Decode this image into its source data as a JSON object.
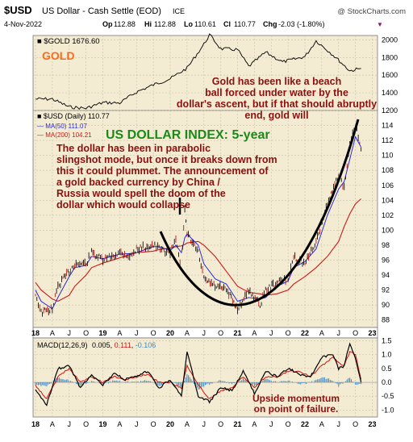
{
  "header": {
    "symbol": "$USD",
    "name": "US Dollar - Cash Settle (EOD)",
    "exchange": "ICE",
    "source": "@ StockCharts.com",
    "date": "4-Nov-2022",
    "op_label": "Op",
    "op_value": "112.88",
    "hi_label": "Hi",
    "hi_value": "112.88",
    "lo_label": "Lo",
    "lo_value": "110.61",
    "cl_label": "Cl",
    "cl_value": "110.77",
    "chg_label": "Chg",
    "chg_value": "-2.03 (-1.80%)",
    "chg_arrow": "▼"
  },
  "colors": {
    "panel_bg": "#f4ecd2",
    "gold_title": "#ff6a1a",
    "dollar_title": "#1b8a1b",
    "annotation": "#8b1010",
    "ma50": "#2b2bd6",
    "ma200": "#cc1a1a",
    "price": "#111111",
    "macd_signal": "#d01010",
    "macd_hist": "#3a86c9"
  },
  "x_axis": {
    "labels_top": [
      "18",
      "A",
      "J",
      "O",
      "19",
      "A",
      "J",
      "O",
      "20",
      "A",
      "J",
      "O",
      "21",
      "A",
      "J",
      "O",
      "22",
      "A",
      "J",
      "O",
      "23"
    ],
    "labels_bottom": [
      "18",
      "A",
      "J",
      "O",
      "19",
      "A",
      "J",
      "O",
      "20",
      "A",
      "J",
      "O",
      "21",
      "A",
      "J",
      "O",
      "22",
      "A",
      "J",
      "O",
      "23"
    ]
  },
  "chart_data": [
    {
      "type": "line",
      "panel": "gold",
      "title": "GOLD",
      "legend": "■ $GOLD 1676.60",
      "ylim": [
        1200,
        2050
      ],
      "yticks": [
        "2000",
        "1800",
        "1600",
        "1400",
        "1200"
      ],
      "x": [
        "2018-01",
        "2018-04",
        "2018-07",
        "2018-10",
        "2019-01",
        "2019-04",
        "2019-07",
        "2019-10",
        "2020-01",
        "2020-04",
        "2020-07",
        "2020-08",
        "2020-10",
        "2021-01",
        "2021-03",
        "2021-06",
        "2021-09",
        "2022-01",
        "2022-03",
        "2022-06",
        "2022-09",
        "2022-11"
      ],
      "series": [
        {
          "values": [
            1330,
            1330,
            1240,
            1225,
            1290,
            1285,
            1410,
            1490,
            1560,
            1680,
            1950,
            2060,
            1900,
            1890,
            1700,
            1860,
            1750,
            1810,
            1990,
            1830,
            1650,
            1676
          ]
        }
      ],
      "annotation": "Gold has been like a beach ball forced under water by the dollar's ascent, but if that should abruptly end, gold will soar."
    },
    {
      "type": "line",
      "panel": "dollar",
      "title": "US DOLLAR INDEX: 5-year",
      "legend": [
        "■ $USD (Daily) 110.77",
        "— MA(50) 111.07",
        "— MA(200) 104.21"
      ],
      "ylim": [
        87,
        116
      ],
      "yticks": [
        "114",
        "112",
        "110",
        "108",
        "106",
        "104",
        "102",
        "100",
        "98",
        "96",
        "94",
        "92",
        "90",
        "88"
      ],
      "x": [
        "2018-01",
        "2018-02",
        "2018-04",
        "2018-05",
        "2018-07",
        "2018-08",
        "2018-10",
        "2018-11",
        "2019-01",
        "2019-04",
        "2019-06",
        "2019-07",
        "2019-10",
        "2019-11",
        "2020-01",
        "2020-02",
        "2020-03",
        "2020-03b",
        "2020-04",
        "2020-06",
        "2020-07",
        "2020-09",
        "2020-11",
        "2021-01",
        "2021-03",
        "2021-05",
        "2021-06",
        "2021-08",
        "2021-10",
        "2021-11",
        "2022-01",
        "2022-03",
        "2022-05",
        "2022-07",
        "2022-08",
        "2022-09",
        "2022-10",
        "2022-11"
      ],
      "series": [
        {
          "name": "$USD",
          "values": [
            91.5,
            89.0,
            89.5,
            92.5,
            94.5,
            95.5,
            95.5,
            97.0,
            96.0,
            97.0,
            96.5,
            97.5,
            98.0,
            97.5,
            97.0,
            99.0,
            95.0,
            102.5,
            99.5,
            97.0,
            93.5,
            92.5,
            92.0,
            89.5,
            92.0,
            90.0,
            92.0,
            93.0,
            93.5,
            96.5,
            95.5,
            98.5,
            103.5,
            107.5,
            105.5,
            111.5,
            114.0,
            110.8
          ]
        },
        {
          "name": "MA(50)",
          "values": [
            92.0,
            90.5,
            89.5,
            91.0,
            93.8,
            95.0,
            95.3,
            96.5,
            96.2,
            96.8,
            96.9,
            97.0,
            97.8,
            97.8,
            97.3,
            98.0,
            97.0,
            99.0,
            99.5,
            98.0,
            95.5,
            93.5,
            92.8,
            90.5,
            91.0,
            90.8,
            91.0,
            92.5,
            93.2,
            95.0,
            95.8,
            97.5,
            102.0,
            105.5,
            106.5,
            109.5,
            112.5,
            111.1
          ]
        },
        {
          "name": "MA(200)",
          "values": [
            93.0,
            92.0,
            90.8,
            90.5,
            91.3,
            92.5,
            94.0,
            95.0,
            95.6,
            96.3,
            96.8,
            97.0,
            97.2,
            97.4,
            97.6,
            97.8,
            97.9,
            98.1,
            98.3,
            98.5,
            98.0,
            96.5,
            94.5,
            92.5,
            91.7,
            91.5,
            91.3,
            91.5,
            92.0,
            92.8,
            93.8,
            95.0,
            96.5,
            98.5,
            100.5,
            102.2,
            103.5,
            104.2
          ]
        }
      ],
      "annotation": "The dollar has been in parabolic slingshot mode, but once it breaks down from this it could plummet. The announcement of a gold backed currency by China / Russia would spell the doom of the dollar which would collapse with breathtaking speed."
    },
    {
      "type": "line",
      "panel": "macd",
      "legend_prefix": "MACD(12,26,9)",
      "macd_value": "0.005",
      "signal_value": "0.111",
      "hist_value": "-0.106",
      "ylim": [
        -1.25,
        1.6
      ],
      "yticks": [
        "1.5",
        "1.0",
        "0.5",
        "0.0",
        "-0.5",
        "-1.0"
      ],
      "x": [
        "2018-01",
        "2018-03",
        "2018-05",
        "2018-07",
        "2018-09",
        "2018-11",
        "2019-01",
        "2019-03",
        "2019-05",
        "2019-07",
        "2019-09",
        "2019-11",
        "2020-01",
        "2020-03",
        "2020-04",
        "2020-06",
        "2020-08",
        "2020-10",
        "2020-12",
        "2021-02",
        "2021-04",
        "2021-06",
        "2021-08",
        "2021-10",
        "2021-12",
        "2022-02",
        "2022-04",
        "2022-06",
        "2022-07",
        "2022-08",
        "2022-09",
        "2022-10",
        "2022-11"
      ],
      "series": [
        {
          "name": "MACD",
          "values": [
            -0.3,
            -0.8,
            0.5,
            0.6,
            -0.2,
            0.3,
            -0.1,
            0.3,
            0.1,
            0.2,
            0.4,
            -0.2,
            0.1,
            -0.5,
            1.1,
            -0.5,
            -0.7,
            -0.2,
            -0.3,
            0.4,
            -0.4,
            0.4,
            0.2,
            0.5,
            0.3,
            0.2,
            0.9,
            1.0,
            0.5,
            0.6,
            1.4,
            0.9,
            0.005
          ]
        },
        {
          "name": "Signal",
          "values": [
            -0.1,
            -0.6,
            0.2,
            0.5,
            0.0,
            0.2,
            0.0,
            0.2,
            0.1,
            0.2,
            0.3,
            0.0,
            0.0,
            -0.2,
            0.6,
            -0.1,
            -0.6,
            -0.3,
            -0.2,
            0.2,
            -0.2,
            0.2,
            0.2,
            0.4,
            0.4,
            0.2,
            0.6,
            0.9,
            0.7,
            0.6,
            1.1,
            1.0,
            0.111
          ]
        }
      ],
      "annotation": "Upside momentum on point of failure."
    }
  ]
}
